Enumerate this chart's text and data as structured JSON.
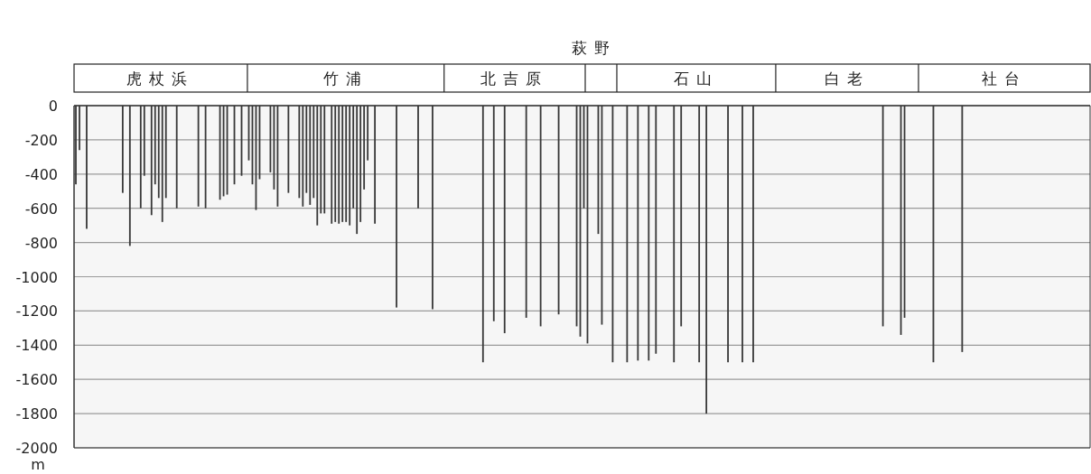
{
  "chart_data": {
    "type": "bar",
    "title": "萩野",
    "ylabel": "m",
    "annotations": [
      "虎杖浜",
      "竹浦",
      "北吉原",
      "石山",
      "白老",
      "社台"
    ],
    "categories": [
      null,
      null,
      null,
      null,
      null,
      null,
      null,
      null,
      null,
      null,
      null,
      null,
      null,
      null,
      null,
      null,
      null,
      null,
      null,
      null,
      null,
      null,
      null,
      null,
      null,
      null,
      null,
      null,
      null,
      null,
      null,
      null,
      null,
      null,
      null,
      null,
      null,
      null,
      null,
      null,
      null,
      null,
      null,
      null,
      null,
      null,
      null,
      null,
      null,
      null,
      null,
      null,
      null,
      null,
      null,
      null,
      null,
      null,
      null,
      null,
      null,
      null,
      null,
      null,
      null,
      null,
      null,
      null,
      null,
      null,
      null,
      null,
      null,
      null,
      null,
      null,
      null,
      null,
      null,
      null,
      null,
      null,
      null,
      null,
      null,
      null,
      null,
      null,
      null,
      null,
      null,
      null,
      null,
      null,
      null,
      null,
      null,
      null,
      null,
      null,
      null,
      null,
      null,
      null,
      null,
      null,
      null,
      null,
      null,
      null,
      null,
      null,
      null,
      null,
      null,
      null,
      null,
      null,
      null,
      null,
      null,
      null,
      null,
      null,
      null,
      null,
      null,
      null,
      null,
      null,
      null,
      null,
      null,
      null,
      null,
      null,
      null,
      null,
      null,
      null,
      null,
      null,
      null,
      null,
      null,
      null,
      null,
      null,
      null,
      null,
      null,
      null,
      null,
      null,
      null,
      null,
      null,
      null,
      null,
      null,
      null,
      null,
      null,
      null,
      null,
      null,
      null,
      null,
      null,
      null,
      null,
      null,
      null,
      null,
      null,
      null,
      null,
      null,
      null,
      null,
      null,
      null,
      null,
      null,
      null,
      null,
      null,
      null,
      null,
      null,
      null,
      null,
      null,
      null,
      null,
      null,
      null,
      null,
      null,
      null,
      null,
      null,
      null,
      null,
      null,
      null,
      null,
      null,
      null,
      null,
      null,
      null,
      null,
      null,
      null,
      null,
      null,
      null,
      null,
      null,
      null,
      null,
      null,
      null,
      null,
      null,
      null,
      null,
      null,
      null,
      null,
      null,
      null,
      null,
      null,
      null,
      null,
      null,
      null,
      null,
      null,
      null,
      null,
      null,
      null,
      null,
      null,
      null,
      null,
      null,
      null,
      null,
      null,
      null,
      null,
      null,
      null,
      null,
      null,
      null,
      null,
      null,
      null,
      null,
      null,
      null,
      null,
      null,
      null,
      null,
      null,
      null,
      null,
      null,
      null,
      null,
      null,
      null,
      null,
      null,
      null,
      null
    ],
    "values": [
      -460,
      -260,
      null,
      -720,
      null,
      null,
      null,
      null,
      null,
      null,
      null,
      null,
      null,
      -510,
      null,
      -820,
      null,
      null,
      -600,
      -410,
      null,
      -640,
      -460,
      -540,
      -680,
      -540,
      null,
      null,
      -600,
      null,
      null,
      null,
      null,
      null,
      -590,
      null,
      -600,
      null,
      null,
      null,
      -550,
      -530,
      -520,
      null,
      -460,
      null,
      -410,
      null,
      -320,
      -460,
      -610,
      -430,
      null,
      null,
      -390,
      -490,
      -590,
      null,
      null,
      -510,
      null,
      null,
      -540,
      -590,
      -510,
      -580,
      -540,
      -700,
      -630,
      -630,
      null,
      -690,
      -680,
      -690,
      -680,
      -680,
      -700,
      -600,
      -750,
      -680,
      -490,
      -320,
      null,
      -690,
      null,
      null,
      null,
      null,
      null,
      -1180,
      null,
      null,
      null,
      null,
      null,
      -600,
      null,
      null,
      null,
      -1190,
      null,
      null,
      null,
      null,
      null,
      null,
      null,
      null,
      null,
      null,
      null,
      null,
      null,
      -1500,
      null,
      null,
      -1260,
      null,
      null,
      -1330,
      null,
      null,
      null,
      null,
      null,
      -1240,
      null,
      null,
      null,
      -1290,
      null,
      null,
      null,
      null,
      -1220,
      null,
      null,
      null,
      null,
      -1290,
      -1350,
      -600,
      -1390,
      null,
      null,
      -750,
      -1280,
      null,
      null,
      -1500,
      null,
      null,
      null,
      -1500,
      null,
      null,
      -1490,
      null,
      null,
      -1490,
      null,
      -1450,
      null,
      null,
      null,
      null,
      -1500,
      null,
      -1290,
      null,
      null,
      null,
      null,
      -1500,
      null,
      -1800,
      null,
      null,
      null,
      null,
      null,
      -1500,
      null,
      null,
      null,
      -1500,
      null,
      null,
      -1500,
      null,
      null,
      null,
      null,
      null,
      null,
      null,
      null,
      null,
      null,
      null,
      null,
      null,
      null,
      null,
      null,
      null,
      null,
      null,
      null,
      null,
      null,
      null,
      null,
      null,
      null,
      null,
      null,
      null,
      null,
      null,
      null,
      null,
      null,
      null,
      -1290,
      null,
      null,
      null,
      null,
      -1340,
      -1240,
      null,
      null,
      null,
      null,
      null,
      null,
      null,
      -1500,
      null,
      null,
      null,
      null,
      null,
      null,
      null,
      -1440,
      null,
      null,
      null,
      null,
      null,
      null,
      null,
      null,
      null,
      null,
      null,
      null,
      null,
      null,
      null,
      null,
      null,
      null,
      null,
      null,
      null,
      null,
      null,
      null,
      null,
      null,
      null,
      null,
      null,
      null,
      null,
      null,
      null,
      null,
      null
    ],
    "color": "#383838",
    "ylim": [
      -2000,
      0
    ],
    "yticks": [
      0,
      -200,
      -400,
      -600,
      -800,
      -1000,
      -1200,
      -1400,
      -1600,
      -1800,
      -2000
    ],
    "grid": "y"
  }
}
